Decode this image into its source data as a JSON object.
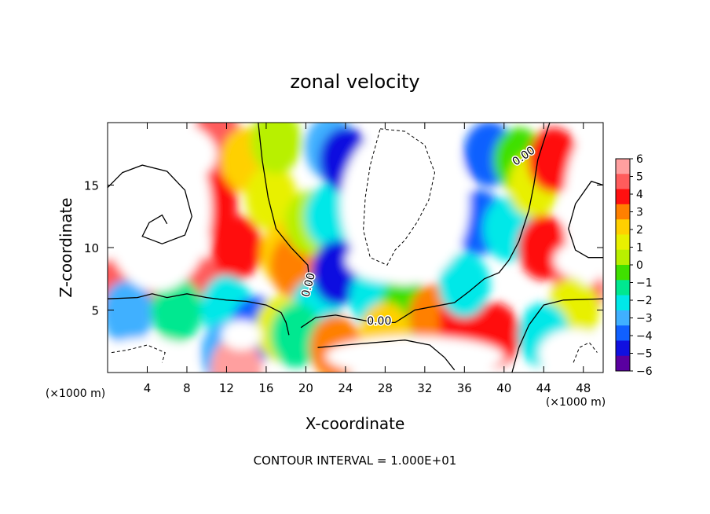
{
  "chart_data": {
    "type": "heatmap",
    "title": "zonal velocity",
    "xlabel": "X-coordinate",
    "ylabel": "Z-coordinate",
    "x_unit_left": "(×1000 m)",
    "x_unit_right": "(×1000 m)",
    "footer": "CONTOUR INTERVAL = 1.000E+01",
    "xlim": [
      0,
      50
    ],
    "ylim": [
      0,
      20
    ],
    "x_ticks": [
      4,
      8,
      12,
      16,
      20,
      24,
      28,
      32,
      36,
      40,
      44,
      48
    ],
    "y_ticks": [
      5,
      10,
      15
    ],
    "colorbar": {
      "ticks": [
        6,
        5,
        4,
        3,
        2,
        1,
        0,
        -1,
        -2,
        -3,
        -4,
        -5,
        -6
      ],
      "tick_labels": [
        "6",
        "5",
        "4",
        "3",
        "2",
        "1",
        "0",
        "−1",
        "−2",
        "−3",
        "−4",
        "−5",
        "−6"
      ],
      "colors": [
        "#ff9f9f",
        "#ff5c5c",
        "#ff1010",
        "#ff8000",
        "#ffd000",
        "#e8f000",
        "#b8f000",
        "#40e000",
        "#00e890",
        "#00e8e8",
        "#40b0ff",
        "#1060ff",
        "#1010e0",
        "#5a00a0"
      ]
    },
    "contour_labels": [
      {
        "text": "0.00",
        "x": 20.3,
        "z": 7.0,
        "angle": -75
      },
      {
        "text": "0.00",
        "x": 27.4,
        "z": 4.1,
        "angle": 0
      },
      {
        "text": "0.00",
        "x": 42.0,
        "z": 17.3,
        "angle": -35
      }
    ],
    "field_centers": [
      {
        "x": 1.0,
        "z": 6.6,
        "v": 5
      },
      {
        "x": 5.0,
        "z": 6.6,
        "v": 4
      },
      {
        "x": 9.0,
        "z": 6.8,
        "v": 5
      },
      {
        "x": 13.0,
        "z": 10.0,
        "v": 4
      },
      {
        "x": 10.5,
        "z": 13.5,
        "v": 4
      },
      {
        "x": 11.0,
        "z": 18.5,
        "v": 5
      },
      {
        "x": 14.0,
        "z": 17.0,
        "v": 2
      },
      {
        "x": 16.5,
        "z": 14.0,
        "v": 1
      },
      {
        "x": 18.0,
        "z": 9.5,
        "v": 2
      },
      {
        "x": 19.0,
        "z": 8.5,
        "v": 3
      },
      {
        "x": 17.0,
        "z": 18.5,
        "v": 0
      },
      {
        "x": 20.5,
        "z": 12.0,
        "v": 0
      },
      {
        "x": 21.0,
        "z": 5.0,
        "v": -3
      },
      {
        "x": 22.5,
        "z": 12.5,
        "v": -3
      },
      {
        "x": 22.5,
        "z": 18.0,
        "v": -4
      },
      {
        "x": 23.2,
        "z": 8.0,
        "v": -6
      },
      {
        "x": 24.0,
        "z": 17.0,
        "v": -6
      },
      {
        "x": 27.0,
        "z": 6.0,
        "v": -3
      },
      {
        "x": 30.0,
        "z": 5.0,
        "v": -1
      },
      {
        "x": 33.0,
        "z": 4.5,
        "v": 3
      },
      {
        "x": 36.0,
        "z": 4.0,
        "v": 4
      },
      {
        "x": 39.0,
        "z": 3.0,
        "v": 4
      },
      {
        "x": 36.0,
        "z": 7.0,
        "v": -3
      },
      {
        "x": 37.5,
        "z": 12.0,
        "v": -5
      },
      {
        "x": 38.5,
        "z": 17.5,
        "v": -5
      },
      {
        "x": 40.5,
        "z": 11.5,
        "v": -3
      },
      {
        "x": 41.5,
        "z": 17.0,
        "v": -1
      },
      {
        "x": 43.0,
        "z": 15.0,
        "v": 1
      },
      {
        "x": 45.0,
        "z": 17.0,
        "v": 4
      },
      {
        "x": 44.0,
        "z": 10.0,
        "v": 4
      },
      {
        "x": 47.5,
        "z": 6.6,
        "v": 5
      },
      {
        "x": 47.0,
        "z": 5.0,
        "v": 1
      },
      {
        "x": 44.0,
        "z": 3.0,
        "v": -3
      },
      {
        "x": 2.0,
        "z": 4.8,
        "v": -4
      },
      {
        "x": 7.0,
        "z": 5.0,
        "v": -2
      },
      {
        "x": 12.0,
        "z": 5.2,
        "v": -3
      },
      {
        "x": 15.0,
        "z": 3.5,
        "v": -5
      },
      {
        "x": 17.5,
        "z": 3.5,
        "v": 1
      },
      {
        "x": 19.0,
        "z": 3.0,
        "v": -2
      },
      {
        "x": 23.0,
        "z": 2.0,
        "v": 3
      },
      {
        "x": 28.0,
        "z": 3.0,
        "v": 2
      },
      {
        "x": 12.0,
        "z": 1.5,
        "v": -4
      },
      {
        "x": 13.0,
        "z": 0.3,
        "v": 6
      }
    ],
    "blank_regions": [
      {
        "x": 5.0,
        "z": 13.0,
        "rx": 5.5,
        "rz": 6.5
      },
      {
        "x": 4.0,
        "z": 17.5,
        "rx": 7.0,
        "rz": 3.0
      },
      {
        "x": 30.0,
        "z": 13.5,
        "rx": 6.5,
        "rz": 6.5
      },
      {
        "x": 29.0,
        "z": 9.0,
        "rx": 5.0,
        "rz": 1.8
      },
      {
        "x": 48.5,
        "z": 13.0,
        "rx": 2.5,
        "rz": 6.0
      },
      {
        "x": 48.0,
        "z": 9.0,
        "rx": 3.0,
        "rz": 1.5
      },
      {
        "x": 31.0,
        "z": 1.3,
        "rx": 9.0,
        "rz": 1.6
      },
      {
        "x": 26.0,
        "z": 1.2,
        "rx": 3.0,
        "rz": 1.0
      },
      {
        "x": 4.0,
        "z": 1.2,
        "rx": 5.0,
        "rz": 1.6
      },
      {
        "x": 47.0,
        "z": 1.5,
        "rx": 3.5,
        "rz": 2.0
      },
      {
        "x": 13.5,
        "z": 3.0,
        "rx": 2.0,
        "rz": 1.2
      }
    ]
  }
}
